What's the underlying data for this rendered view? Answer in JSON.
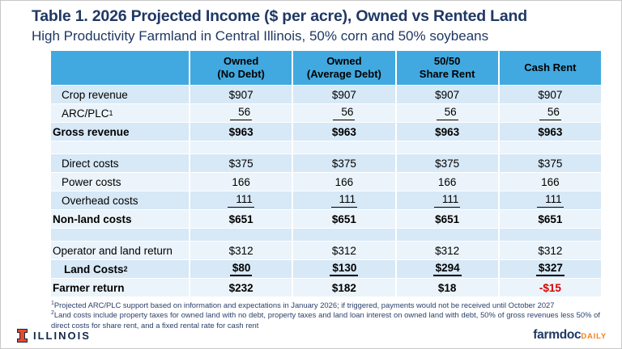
{
  "page": {
    "title": "Table 1. 2026 Projected Income ($ per acre), Owned vs Rented Land",
    "subtitle": "High Productivity Farmland in Central Illinois, 50% corn and 50% soybeans"
  },
  "colors": {
    "navy": "#1F3864",
    "header_blue": "#41A9DF",
    "row_tint": "#D7E8F6",
    "row_light": "#EBF4FB",
    "negative_red": "#D90000",
    "illinois_orange": "#E84A27",
    "daily_orange": "#F5821F",
    "footer_navy": "#13294B"
  },
  "chart_data": {
    "type": "table",
    "title": "Table 1. 2026 Projected Income ($ per acre), Owned vs Rented Land",
    "subtitle": "High Productivity Farmland in Central Illinois, 50% corn and 50% soybeans",
    "columns": [
      "",
      "Owned (No Debt)",
      "Owned (Average Debt)",
      "50/50 Share Rent",
      "Cash Rent"
    ],
    "rows": [
      {
        "label": "Crop revenue",
        "values": [
          "$907",
          "$907",
          "$907",
          "$907"
        ]
      },
      {
        "label": "ARC/PLC",
        "sup": "1",
        "values": [
          "56",
          "56",
          "56",
          "56"
        ],
        "underline": true
      },
      {
        "label": "Gross revenue",
        "values": [
          "$963",
          "$963",
          "$963",
          "$963"
        ],
        "bold": true
      },
      {
        "spacer": true
      },
      {
        "label": "Direct costs",
        "values": [
          "$375",
          "$375",
          "$375",
          "$375"
        ]
      },
      {
        "label": "Power costs",
        "values": [
          "166",
          "166",
          "166",
          "166"
        ]
      },
      {
        "label": "Overhead costs",
        "values": [
          "111",
          "111",
          "111",
          "111"
        ],
        "underline": true
      },
      {
        "label": "Non-land costs",
        "values": [
          "$651",
          "$651",
          "$651",
          "$651"
        ],
        "bold": true
      },
      {
        "spacer": true
      },
      {
        "label": "Operator and land return",
        "values": [
          "$312",
          "$312",
          "$312",
          "$312"
        ],
        "flush": true
      },
      {
        "label": "Land Costs",
        "sup": "2",
        "values": [
          "$80",
          "$130",
          "$294",
          "$327"
        ],
        "bold": true,
        "underline": true,
        "land": true
      },
      {
        "label": "Farmer return",
        "values": [
          "$232",
          "$182",
          "$18",
          "-$15"
        ],
        "bold": true
      }
    ]
  },
  "table_header": {
    "col1": "Owned\n(No Debt)",
    "col2": "Owned\n(Average Debt)",
    "col3": "50/50\nShare Rent",
    "col4": "Cash Rent"
  },
  "footnotes": [
    {
      "marker": "1",
      "text": "Projected ARC/PLC support based on information and expectations in January 2026; if triggered, payments would not be received until October 2027"
    },
    {
      "marker": "2",
      "text": "Land costs include property taxes for owned land with no debt, property taxes and land loan interest on owned land with debt, 50% of gross revenues less 50% of direct costs for share rent, and a fixed rental rate for cash rent"
    }
  ],
  "footer": {
    "university": "ILLINOIS",
    "brand_main": "farmdoc",
    "brand_suffix": "DAILY"
  }
}
